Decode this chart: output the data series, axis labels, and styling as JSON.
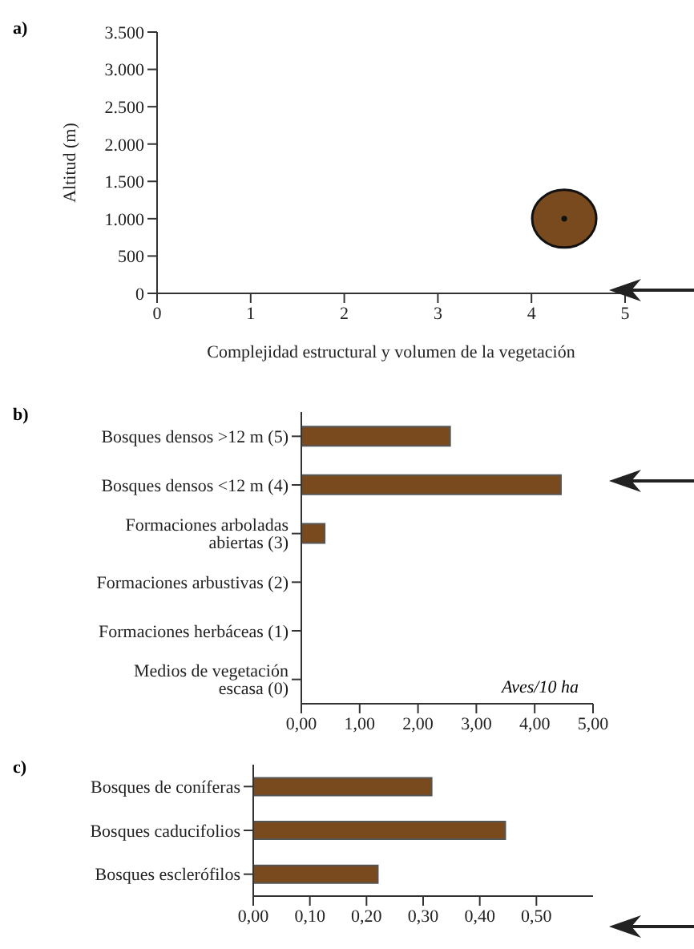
{
  "chart_data": [
    {
      "type": "bubble",
      "title": "a)",
      "xlabel": "Complejidad estructural y volumen de la vegetación",
      "ylabel": "Altitud (m)",
      "x": [
        4.35
      ],
      "values": [
        1000
      ],
      "sizes": [
        1
      ],
      "color": "#7a4a1f",
      "xlim": [
        0,
        5
      ],
      "xticks": [
        0,
        1,
        2,
        3,
        4,
        5
      ],
      "ylim": [
        0,
        3500
      ],
      "yticks": [
        0,
        500,
        {
          "value": 1000,
          "label": "1.000"
        },
        {
          "value": 1500,
          "label": "1.500"
        },
        {
          "value": 2000,
          "label": "2.000"
        },
        {
          "value": 2500,
          "label": "2.500"
        },
        {
          "value": 3000,
          "label": "3.000"
        },
        {
          "value": 3500,
          "label": "3.500"
        }
      ],
      "grid": false
    },
    {
      "type": "bar",
      "orientation": "horizontal",
      "title": "b)",
      "xlabel": "Aves/10 ha",
      "categories": [
        "Bosques densos >12 m (5)",
        "Bosques densos <12 m (4)",
        "Formaciones arboladas abiertas (3)",
        "Formaciones arbustivas (2)",
        "Formaciones herbáceas (1)",
        "Medios de vegetación escasa (0)"
      ],
      "values": [
        2.55,
        4.45,
        0.4,
        0,
        0,
        0
      ],
      "color": "#7a4a1f",
      "xlim": [
        0,
        5
      ],
      "xticks": [
        {
          "value": 0,
          "label": "0,00"
        },
        {
          "value": 1,
          "label": "1,00"
        },
        {
          "value": 2,
          "label": "2,00"
        },
        {
          "value": 3,
          "label": "3,00"
        },
        {
          "value": 4,
          "label": "4,00"
        },
        {
          "value": 5,
          "label": "5,00"
        }
      ],
      "grid": false
    },
    {
      "type": "bar",
      "orientation": "horizontal",
      "title": "c)",
      "categories": [
        "Bosques de coníferas",
        "Bosques caducifolios",
        "Bosques esclerófilos"
      ],
      "values": [
        0.315,
        0.445,
        0.22
      ],
      "color": "#7a4a1f",
      "xlim": [
        0,
        0.6
      ],
      "xticks": [
        {
          "value": 0,
          "label": "0,00"
        },
        {
          "value": 0.1,
          "label": "0,10"
        },
        {
          "value": 0.2,
          "label": "0,20"
        },
        {
          "value": 0.3,
          "label": "0,30"
        },
        {
          "value": 0.4,
          "label": "0,40"
        },
        {
          "value": 0.5,
          "label": "0,50"
        }
      ],
      "grid": false
    }
  ]
}
